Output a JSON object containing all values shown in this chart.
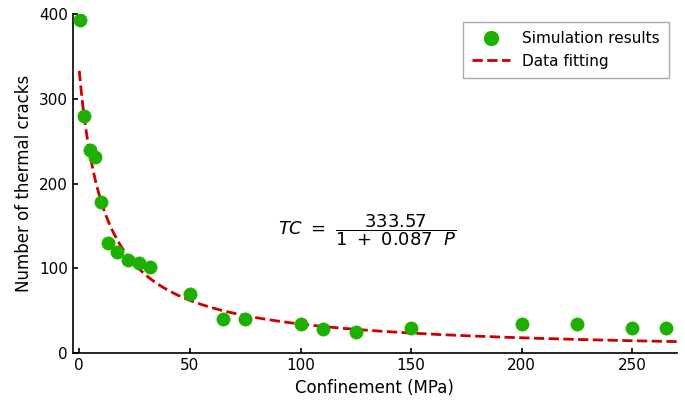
{
  "scatter_x": [
    0.5,
    2,
    5,
    7,
    10,
    13,
    17,
    22,
    27,
    32,
    50,
    65,
    75,
    100,
    110,
    125,
    150,
    200,
    225,
    250,
    265
  ],
  "scatter_y": [
    393,
    280,
    240,
    232,
    178,
    130,
    120,
    110,
    107,
    102,
    70,
    40,
    40,
    35,
    28,
    25,
    30,
    35,
    35,
    30,
    30
  ],
  "fit_a": 333.57,
  "fit_b": 0.087,
  "xlim": [
    -3,
    270
  ],
  "ylim": [
    0,
    400
  ],
  "xticks": [
    0,
    50,
    100,
    150,
    200,
    250
  ],
  "yticks": [
    0,
    100,
    200,
    300,
    400
  ],
  "xlabel": "Confinement (MPa)",
  "ylabel": "Number of thermal cracks",
  "scatter_color": "#1db000",
  "scatter_edgecolor": "#1db000",
  "line_color": "#cc0000",
  "legend_labels": [
    "Simulation results",
    "Data fitting"
  ],
  "eq_x": 130,
  "eq_y": 145,
  "background_color": "#ffffff"
}
